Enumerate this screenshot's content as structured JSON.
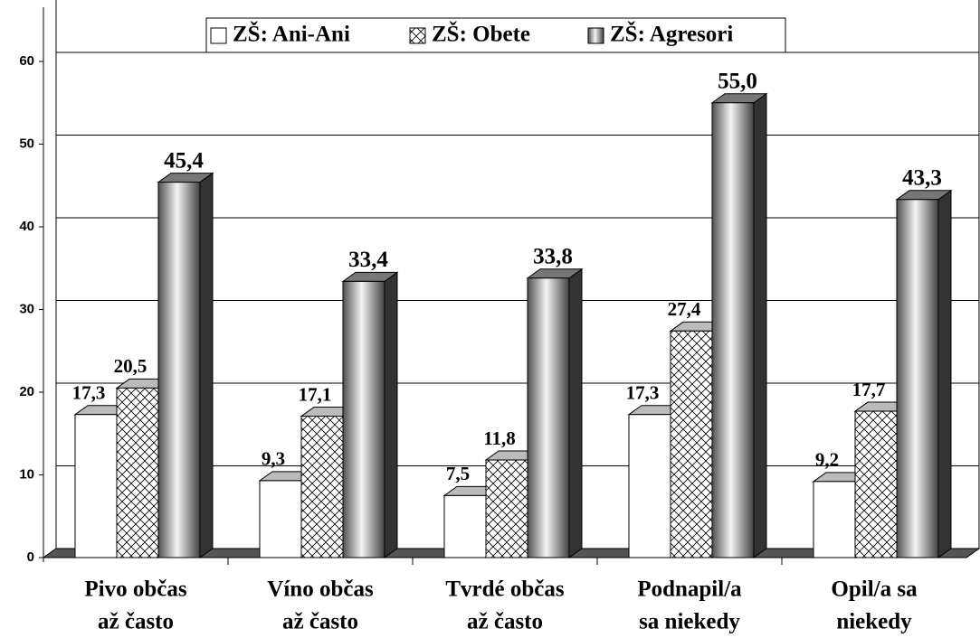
{
  "chart_data": {
    "type": "bar3d",
    "y_label": "%",
    "categories": [
      [
        "Pivo občas",
        "až často"
      ],
      [
        "Víno občas",
        "až často"
      ],
      [
        "Tvrdé občas",
        "až často"
      ],
      [
        "Podnapil/a",
        "sa niekedy"
      ],
      [
        "Opil/a sa",
        "niekedy"
      ]
    ],
    "series": [
      {
        "name": "ZŠ: Ani-Ani",
        "color": "#ffffff",
        "fill_style": "solid",
        "values": [
          17.3,
          9.3,
          7.5,
          17.3,
          9.2
        ],
        "value_labels": [
          "17,3",
          "9,3",
          "7,5",
          "17,3",
          "9,2"
        ]
      },
      {
        "name": "ZŠ: Obete",
        "color": "#ffffff",
        "fill_style": "crosshatch",
        "values": [
          20.5,
          17.1,
          11.8,
          27.4,
          17.7
        ],
        "value_labels": [
          "20,5",
          "17,1",
          "11,8",
          "27,4",
          "17,7"
        ]
      },
      {
        "name": "ZŠ: Agresori",
        "color": "#a0a0a0",
        "fill_style": "cylinder",
        "values": [
          45.4,
          33.4,
          33.8,
          55.0,
          43.3
        ],
        "value_labels": [
          "45,4",
          "33,4",
          "33,8",
          "55,0",
          "43,3"
        ]
      }
    ],
    "ylim": [
      0,
      60
    ],
    "yticks": [
      0,
      10,
      20,
      30,
      40,
      50,
      60
    ],
    "grid": true,
    "legend": "top"
  }
}
